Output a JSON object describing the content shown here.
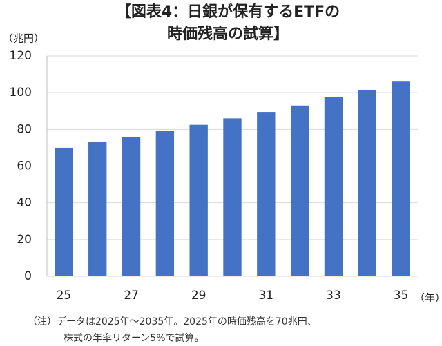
{
  "chart_data": {
    "type": "bar",
    "title": [
      "【図表4：日銀が保有するETFの",
      "時価残高の試算】"
    ],
    "y_unit": "（兆円）",
    "x_unit": "（年）",
    "categories": [
      "25",
      null,
      "27",
      null,
      "29",
      null,
      "31",
      null,
      "33",
      null,
      "35"
    ],
    "values": [
      70,
      73,
      76,
      79,
      82.5,
      86,
      89.5,
      93,
      97.5,
      101.5,
      106
    ],
    "color": "#4472c4",
    "ylim": [
      0,
      120
    ],
    "yticks": [
      0,
      20,
      40,
      60,
      80,
      100,
      120
    ],
    "grid": true,
    "note": [
      "（注）データは2025年～2035年。2025年の時価残高を70兆円、",
      "株式の年率リターン5%で試算。"
    ]
  }
}
